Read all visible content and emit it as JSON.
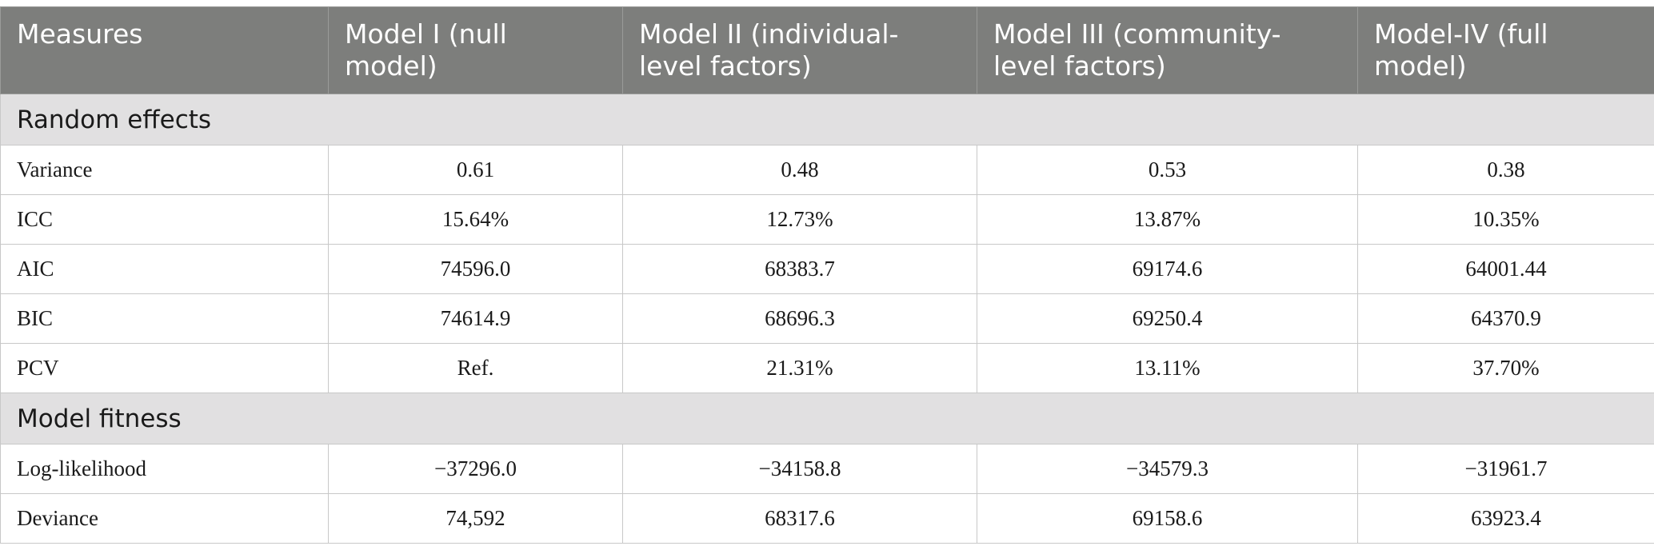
{
  "headers": [
    "Measures",
    "Model I (null model)",
    "Model II (individual-level factors)",
    "Model III (community-level factors)",
    "Model-IV (full model)"
  ],
  "sections": [
    {
      "title": "Random effects",
      "rows": [
        {
          "measure": "Variance",
          "values": [
            "0.61",
            "0.48",
            "0.53",
            "0.38"
          ]
        },
        {
          "measure": "ICC",
          "values": [
            "15.64%",
            "12.73%",
            "13.87%",
            "10.35%"
          ]
        },
        {
          "measure": "AIC",
          "values": [
            "74596.0",
            "68383.7",
            "69174.6",
            "64001.44"
          ]
        },
        {
          "measure": "BIC",
          "values": [
            "74614.9",
            "68696.3",
            "69250.4",
            "64370.9"
          ]
        },
        {
          "measure": "PCV",
          "values": [
            "Ref.",
            "21.31%",
            "13.11%",
            "37.70%"
          ]
        }
      ]
    },
    {
      "title": "Model fitness",
      "rows": [
        {
          "measure": "Log-likelihood",
          "values": [
            "−37296.0",
            "−34158.8",
            "−34579.3",
            "−31961.7"
          ]
        },
        {
          "measure": "Deviance",
          "values": [
            "74,592",
            "68317.6",
            "69158.6",
            "63923.4"
          ]
        }
      ]
    }
  ]
}
